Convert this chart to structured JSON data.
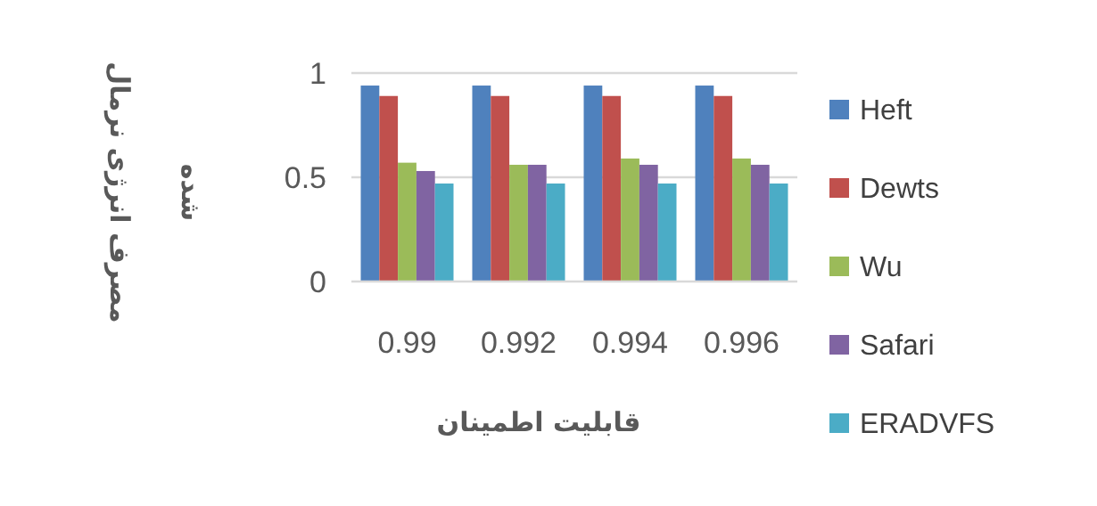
{
  "chart_data": {
    "type": "bar",
    "xlabel": "قابلیت اطمینان",
    "ylabel": "مصرف انرژی نرمال شده",
    "categories": [
      "0.99",
      "0.992",
      "0.994",
      "0.996"
    ],
    "series": [
      {
        "name": "Heft",
        "color": "#4f81bd",
        "values": [
          0.94,
          0.94,
          0.94,
          0.94
        ]
      },
      {
        "name": "Dewts",
        "color": "#c0504d",
        "values": [
          0.89,
          0.89,
          0.89,
          0.89
        ]
      },
      {
        "name": "Wu",
        "color": "#9bbb59",
        "values": [
          0.57,
          0.56,
          0.59,
          0.59
        ]
      },
      {
        "name": "Safari",
        "color": "#8064a2",
        "values": [
          0.53,
          0.56,
          0.56,
          0.56
        ]
      },
      {
        "name": "ERADVFS",
        "color": "#4bacc6",
        "values": [
          0.47,
          0.47,
          0.47,
          0.47
        ]
      }
    ],
    "ylim": [
      0,
      1
    ],
    "yticks": [
      0,
      0.5,
      1
    ],
    "grid": "y",
    "legend": "right"
  }
}
